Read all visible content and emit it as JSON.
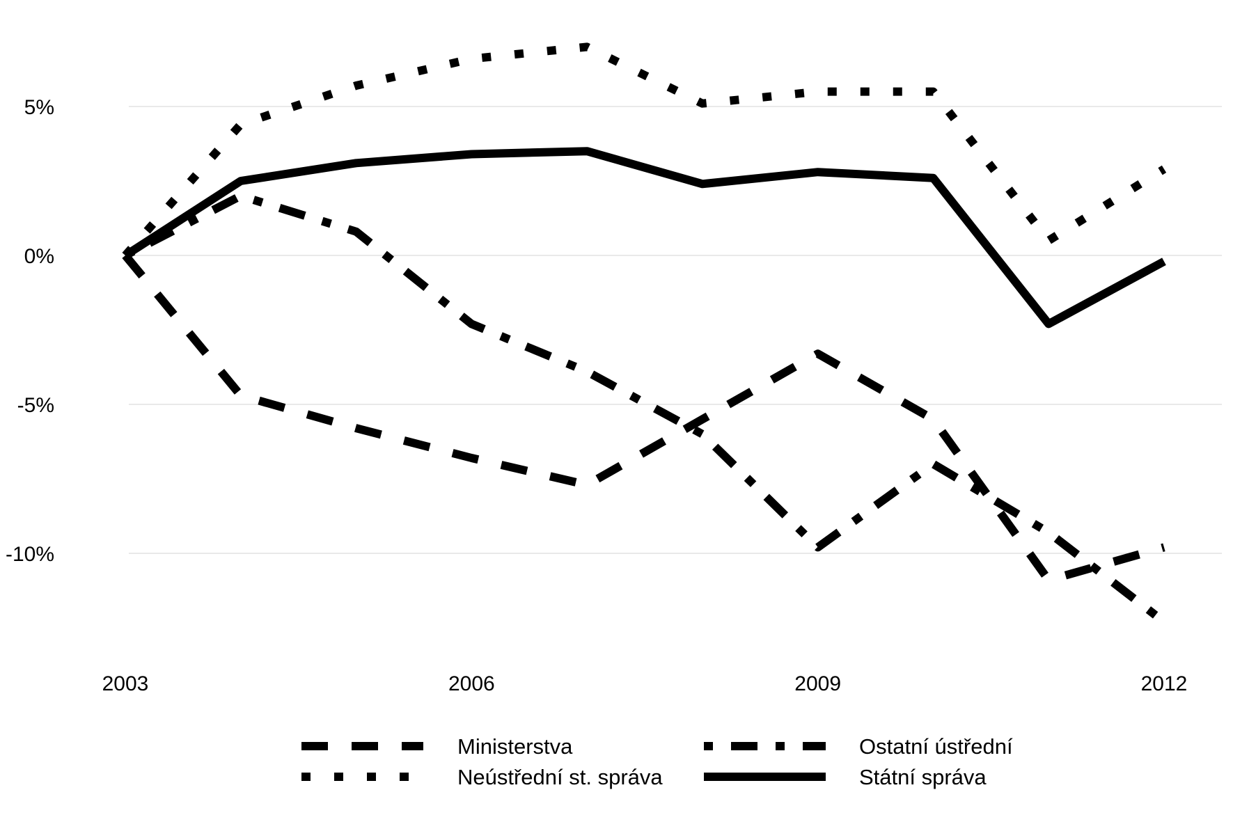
{
  "chart_data": {
    "type": "line",
    "title": "",
    "xlabel": "",
    "ylabel": "",
    "x": [
      2003,
      2004,
      2005,
      2006,
      2007,
      2008,
      2009,
      2010,
      2011,
      2012
    ],
    "x_ticks": [
      "2003",
      "2006",
      "2009",
      "2012"
    ],
    "y_ticks": [
      "5%",
      "0%",
      "-5%",
      "-10%"
    ],
    "y_tick_values": [
      5,
      0,
      -5,
      -10
    ],
    "ylim": [
      -13.1,
      7.0
    ],
    "xlim": [
      2003,
      2012
    ],
    "grid": "horizontal",
    "legend_position": "bottom",
    "series": [
      {
        "name": "Ministerstva",
        "style": "dashed",
        "values": [
          0,
          -4.7,
          -5.8,
          -6.8,
          -7.7,
          -5.5,
          -3.3,
          -5.5,
          -10.9,
          -9.8
        ]
      },
      {
        "name": "Ostatní ústřední",
        "style": "dashdot",
        "values": [
          0,
          2.0,
          0.8,
          -2.3,
          -3.9,
          -6.0,
          -9.8,
          -7.0,
          -9.3,
          -12.3
        ]
      },
      {
        "name": "Neústřední st. správa",
        "style": "dotted",
        "values": [
          0,
          4.4,
          5.7,
          6.6,
          7.0,
          5.1,
          5.5,
          5.5,
          0.5,
          2.9
        ]
      },
      {
        "name": "Státní správa",
        "style": "solid",
        "values": [
          0,
          2.5,
          3.1,
          3.4,
          3.5,
          2.4,
          2.8,
          2.6,
          -2.3,
          -0.2
        ]
      }
    ],
    "legend": [
      [
        "Ministerstva",
        "Ostatní ústřední"
      ],
      [
        "Neústřední st. správa",
        "Státní správa"
      ]
    ],
    "colors": {
      "lines": "#000000",
      "grid": "#dcdcdc"
    }
  }
}
